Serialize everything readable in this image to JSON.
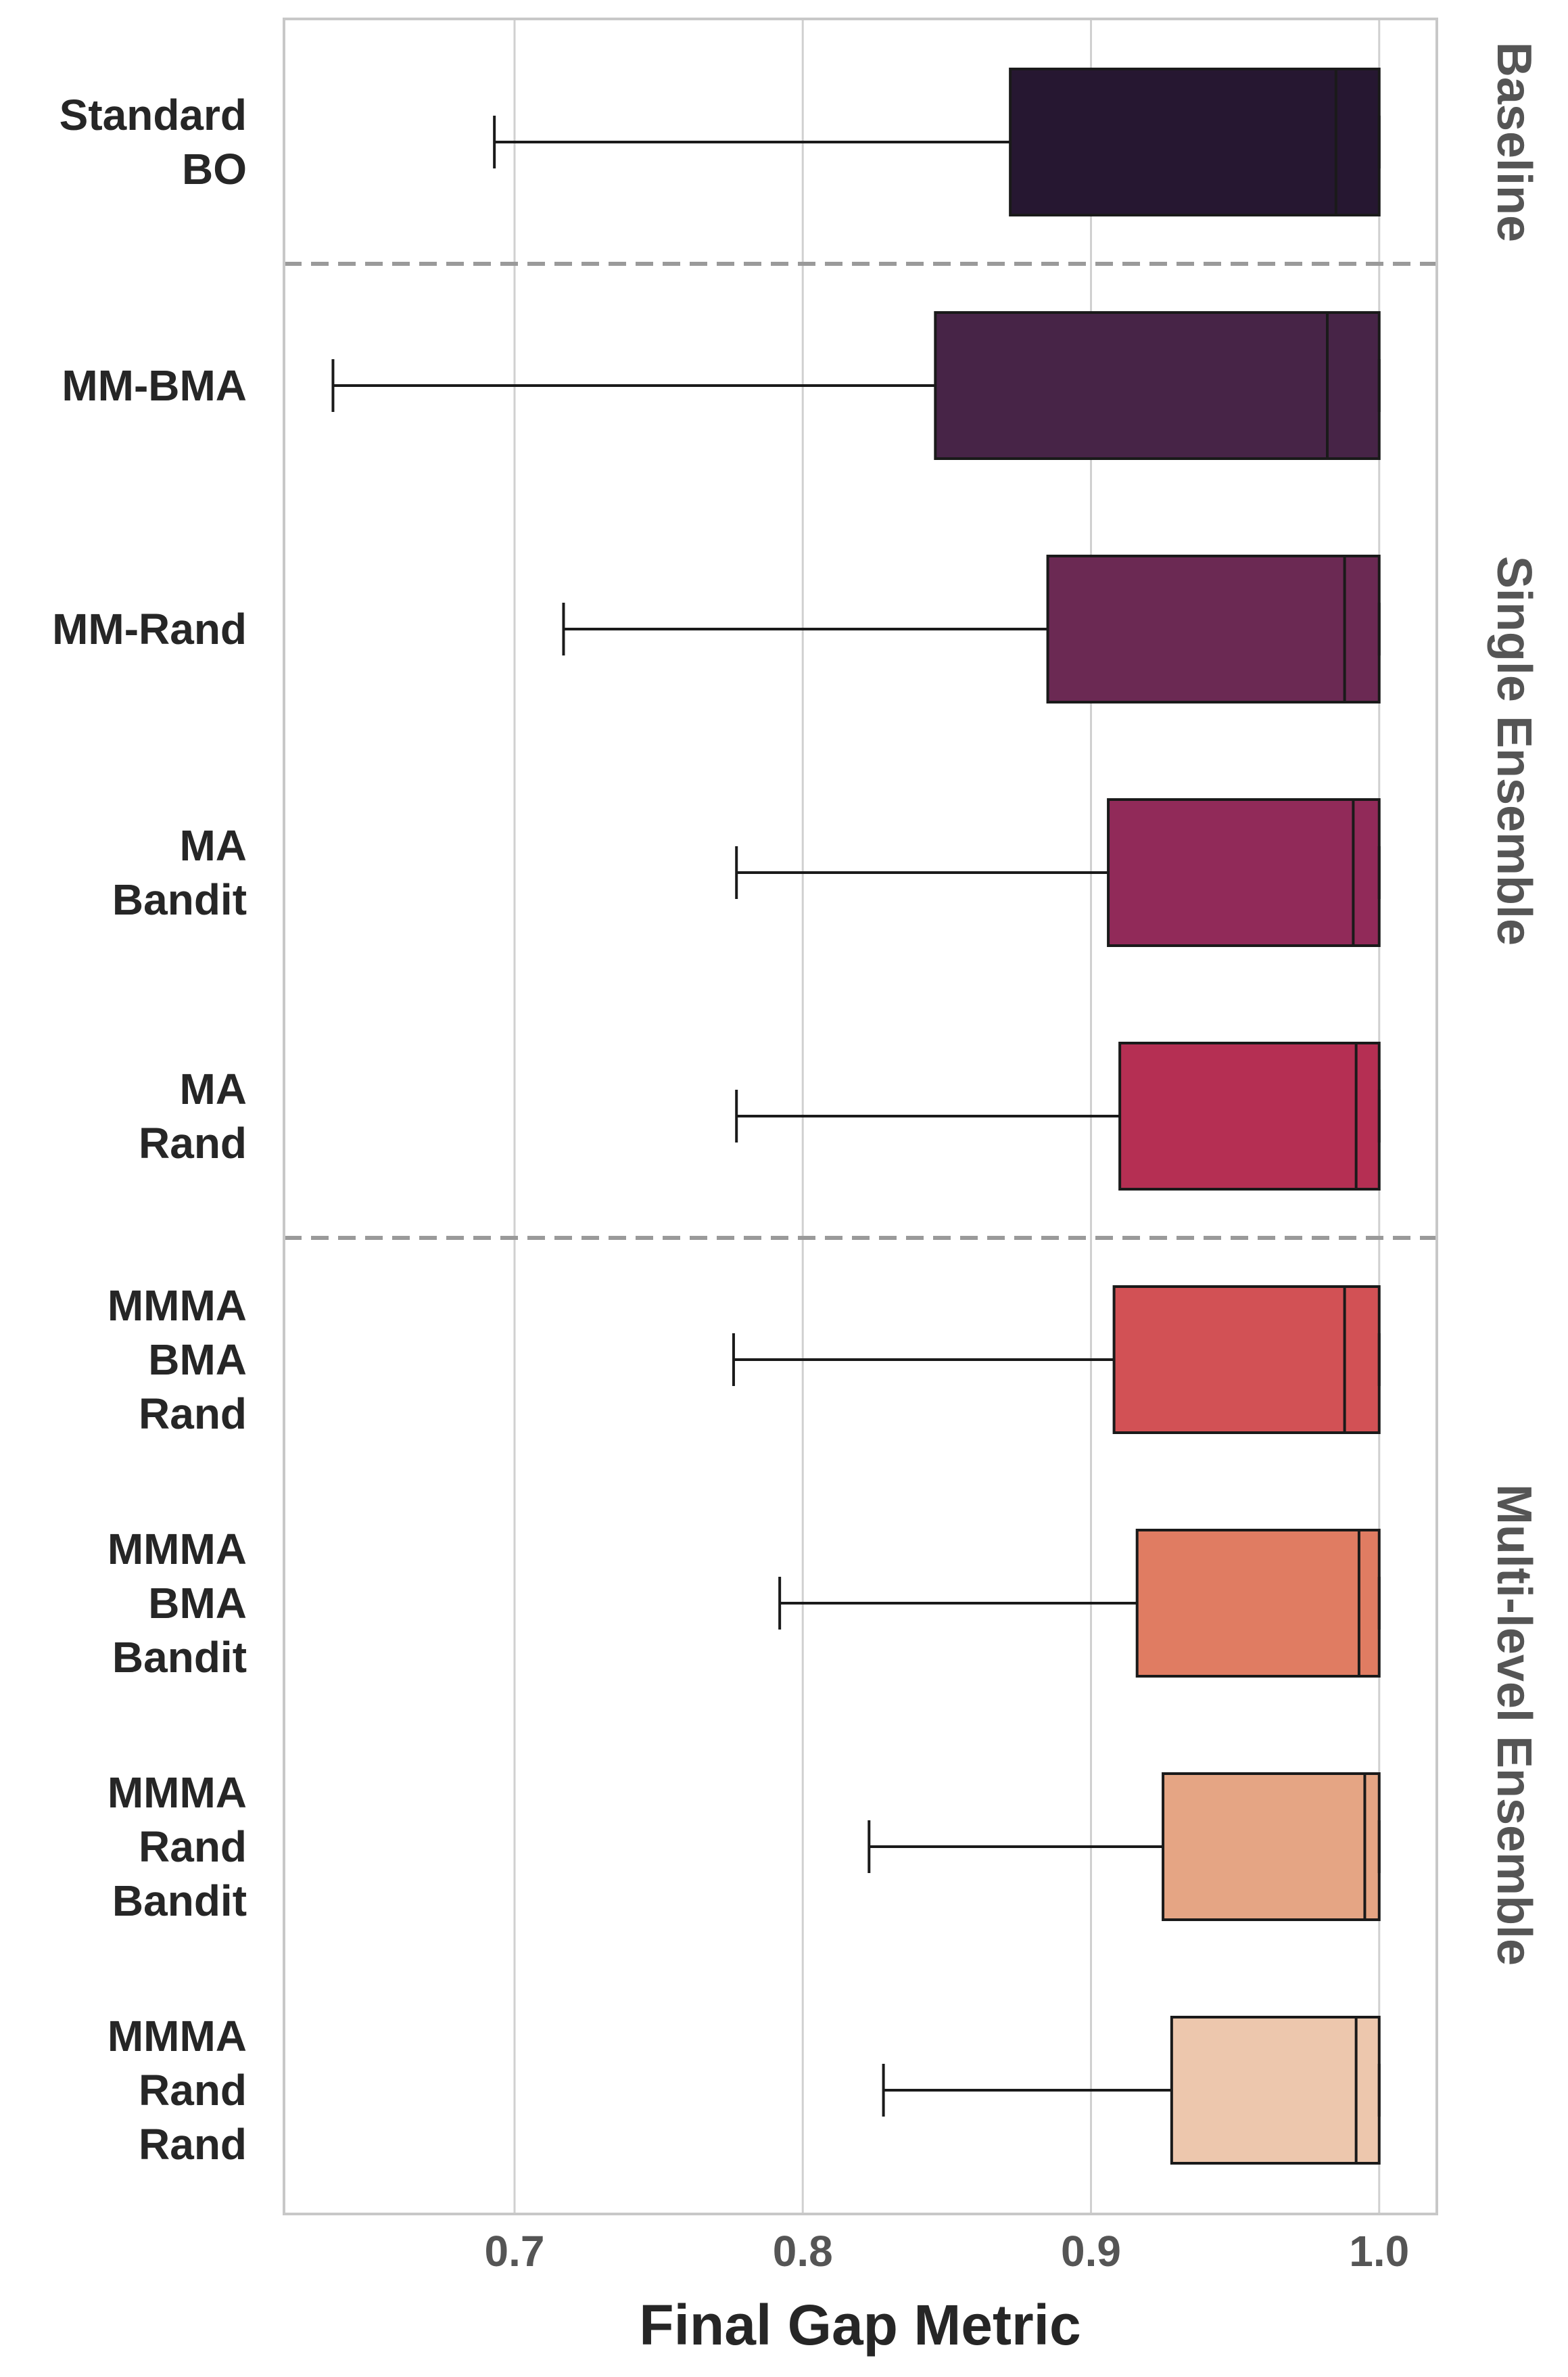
{
  "chart_data": {
    "type": "boxplot",
    "orientation": "horizontal",
    "xlabel": "Final Gap Metric",
    "ylabel": "",
    "xlim": [
      0.62,
      1.02
    ],
    "xticks": [
      "0.7",
      "0.8",
      "0.9",
      "1.0"
    ],
    "grid": "vertical",
    "categories": [
      {
        "label": [
          "Standard",
          "BO"
        ],
        "color": "#261731"
      },
      {
        "label": [
          "MM-BMA"
        ],
        "color": "#472447"
      },
      {
        "label": [
          "MM-Rand"
        ],
        "color": "#6b2953"
      },
      {
        "label": [
          "MA",
          "Bandit"
        ],
        "color": "#912a59"
      },
      {
        "label": [
          "MA",
          "Rand"
        ],
        "color": "#b52f53"
      },
      {
        "label": [
          "MMMA",
          "BMA",
          "Rand"
        ],
        "color": "#d25155"
      },
      {
        "label": [
          "MMMA",
          "BMA",
          "Bandit"
        ],
        "color": "#e07c62"
      },
      {
        "label": [
          "MMMA",
          "Rand",
          "Bandit"
        ],
        "color": "#e5a584"
      },
      {
        "label": [
          "MMMA",
          "Rand",
          "Rand"
        ],
        "color": "#edc7ad"
      }
    ],
    "boxes": [
      {
        "whislo": 0.693,
        "q1": 0.872,
        "med": 0.985,
        "q3": 1.0,
        "whishi": 1.0
      },
      {
        "whislo": 0.637,
        "q1": 0.846,
        "med": 0.982,
        "q3": 1.0,
        "whishi": 1.0
      },
      {
        "whislo": 0.717,
        "q1": 0.885,
        "med": 0.988,
        "q3": 1.0,
        "whishi": 1.0
      },
      {
        "whislo": 0.777,
        "q1": 0.906,
        "med": 0.991,
        "q3": 1.0,
        "whishi": 1.0
      },
      {
        "whislo": 0.777,
        "q1": 0.91,
        "med": 0.992,
        "q3": 1.0,
        "whishi": 1.0
      },
      {
        "whislo": 0.776,
        "q1": 0.908,
        "med": 0.988,
        "q3": 1.0,
        "whishi": 1.0
      },
      {
        "whislo": 0.792,
        "q1": 0.916,
        "med": 0.993,
        "q3": 1.0,
        "whishi": 1.0
      },
      {
        "whislo": 0.823,
        "q1": 0.925,
        "med": 0.995,
        "q3": 1.0,
        "whishi": 1.0
      },
      {
        "whislo": 0.828,
        "q1": 0.928,
        "med": 0.992,
        "q3": 1.0,
        "whishi": 1.0
      }
    ],
    "groups": [
      {
        "label": "Baseline",
        "from": 0,
        "to": 0
      },
      {
        "label": "Single Ensemble",
        "from": 1,
        "to": 4
      },
      {
        "label": "Multi-level Ensemble",
        "from": 5,
        "to": 8
      }
    ],
    "group_separators_after": [
      0,
      4
    ]
  }
}
